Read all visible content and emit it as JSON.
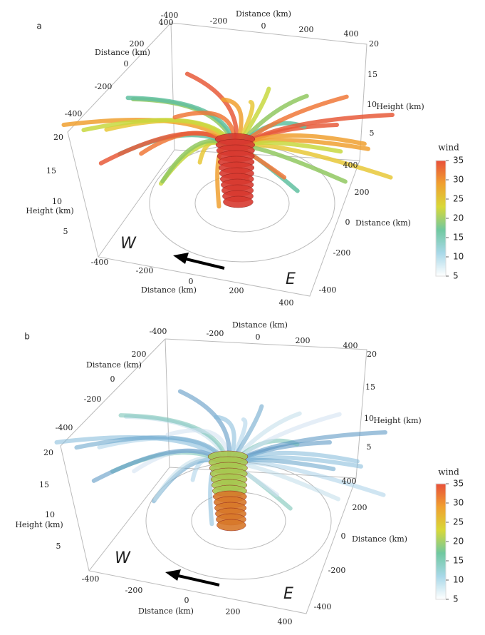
{
  "panels": [
    {
      "label": "a",
      "top_distance": {
        "title": "Distance (km)",
        "ticks": [
          -400,
          -200,
          0,
          200,
          400
        ]
      },
      "left_distance": {
        "title": "Distance (km)",
        "ticks": [
          400,
          200,
          0,
          -200,
          -400
        ]
      },
      "left_height": {
        "title": "Height (km)",
        "ticks": [
          20,
          15,
          10,
          5
        ]
      },
      "bottom_distance": {
        "title": "Distance (km)",
        "ticks": [
          -400,
          -200,
          0,
          200,
          400
        ]
      },
      "right_distance": {
        "title": "Distance (km)",
        "ticks": [
          400,
          200,
          0,
          -200,
          -400
        ]
      },
      "right_height": {
        "title": "Height (km)",
        "ticks": [
          20,
          15,
          10,
          5
        ]
      },
      "west": "W",
      "east": "E",
      "colorbar": {
        "title": "wind",
        "ticks": [
          35,
          30,
          25,
          20,
          15,
          10,
          5
        ]
      }
    },
    {
      "label": "b",
      "top_distance": {
        "title": "Distance (km)",
        "ticks": [
          -400,
          -200,
          0,
          200,
          400
        ]
      },
      "left_distance": {
        "title": "Distance (km)",
        "ticks": [
          200,
          0,
          -200,
          -400
        ]
      },
      "left_height": {
        "title": "Height (km)",
        "ticks": [
          20,
          15,
          10,
          5
        ]
      },
      "bottom_distance": {
        "title": "Distance (km)",
        "ticks": [
          -400,
          -200,
          0,
          200,
          400
        ]
      },
      "right_distance": {
        "title": "Distance (km)",
        "ticks": [
          400,
          200,
          0,
          -200,
          -400
        ]
      },
      "right_height": {
        "title": "Height (km)",
        "ticks": [
          20,
          15,
          10,
          5
        ]
      },
      "west": "W",
      "east": "E",
      "colorbar": {
        "title": "wind",
        "ticks": [
          35,
          30,
          25,
          20,
          15,
          10,
          5
        ]
      }
    }
  ]
}
